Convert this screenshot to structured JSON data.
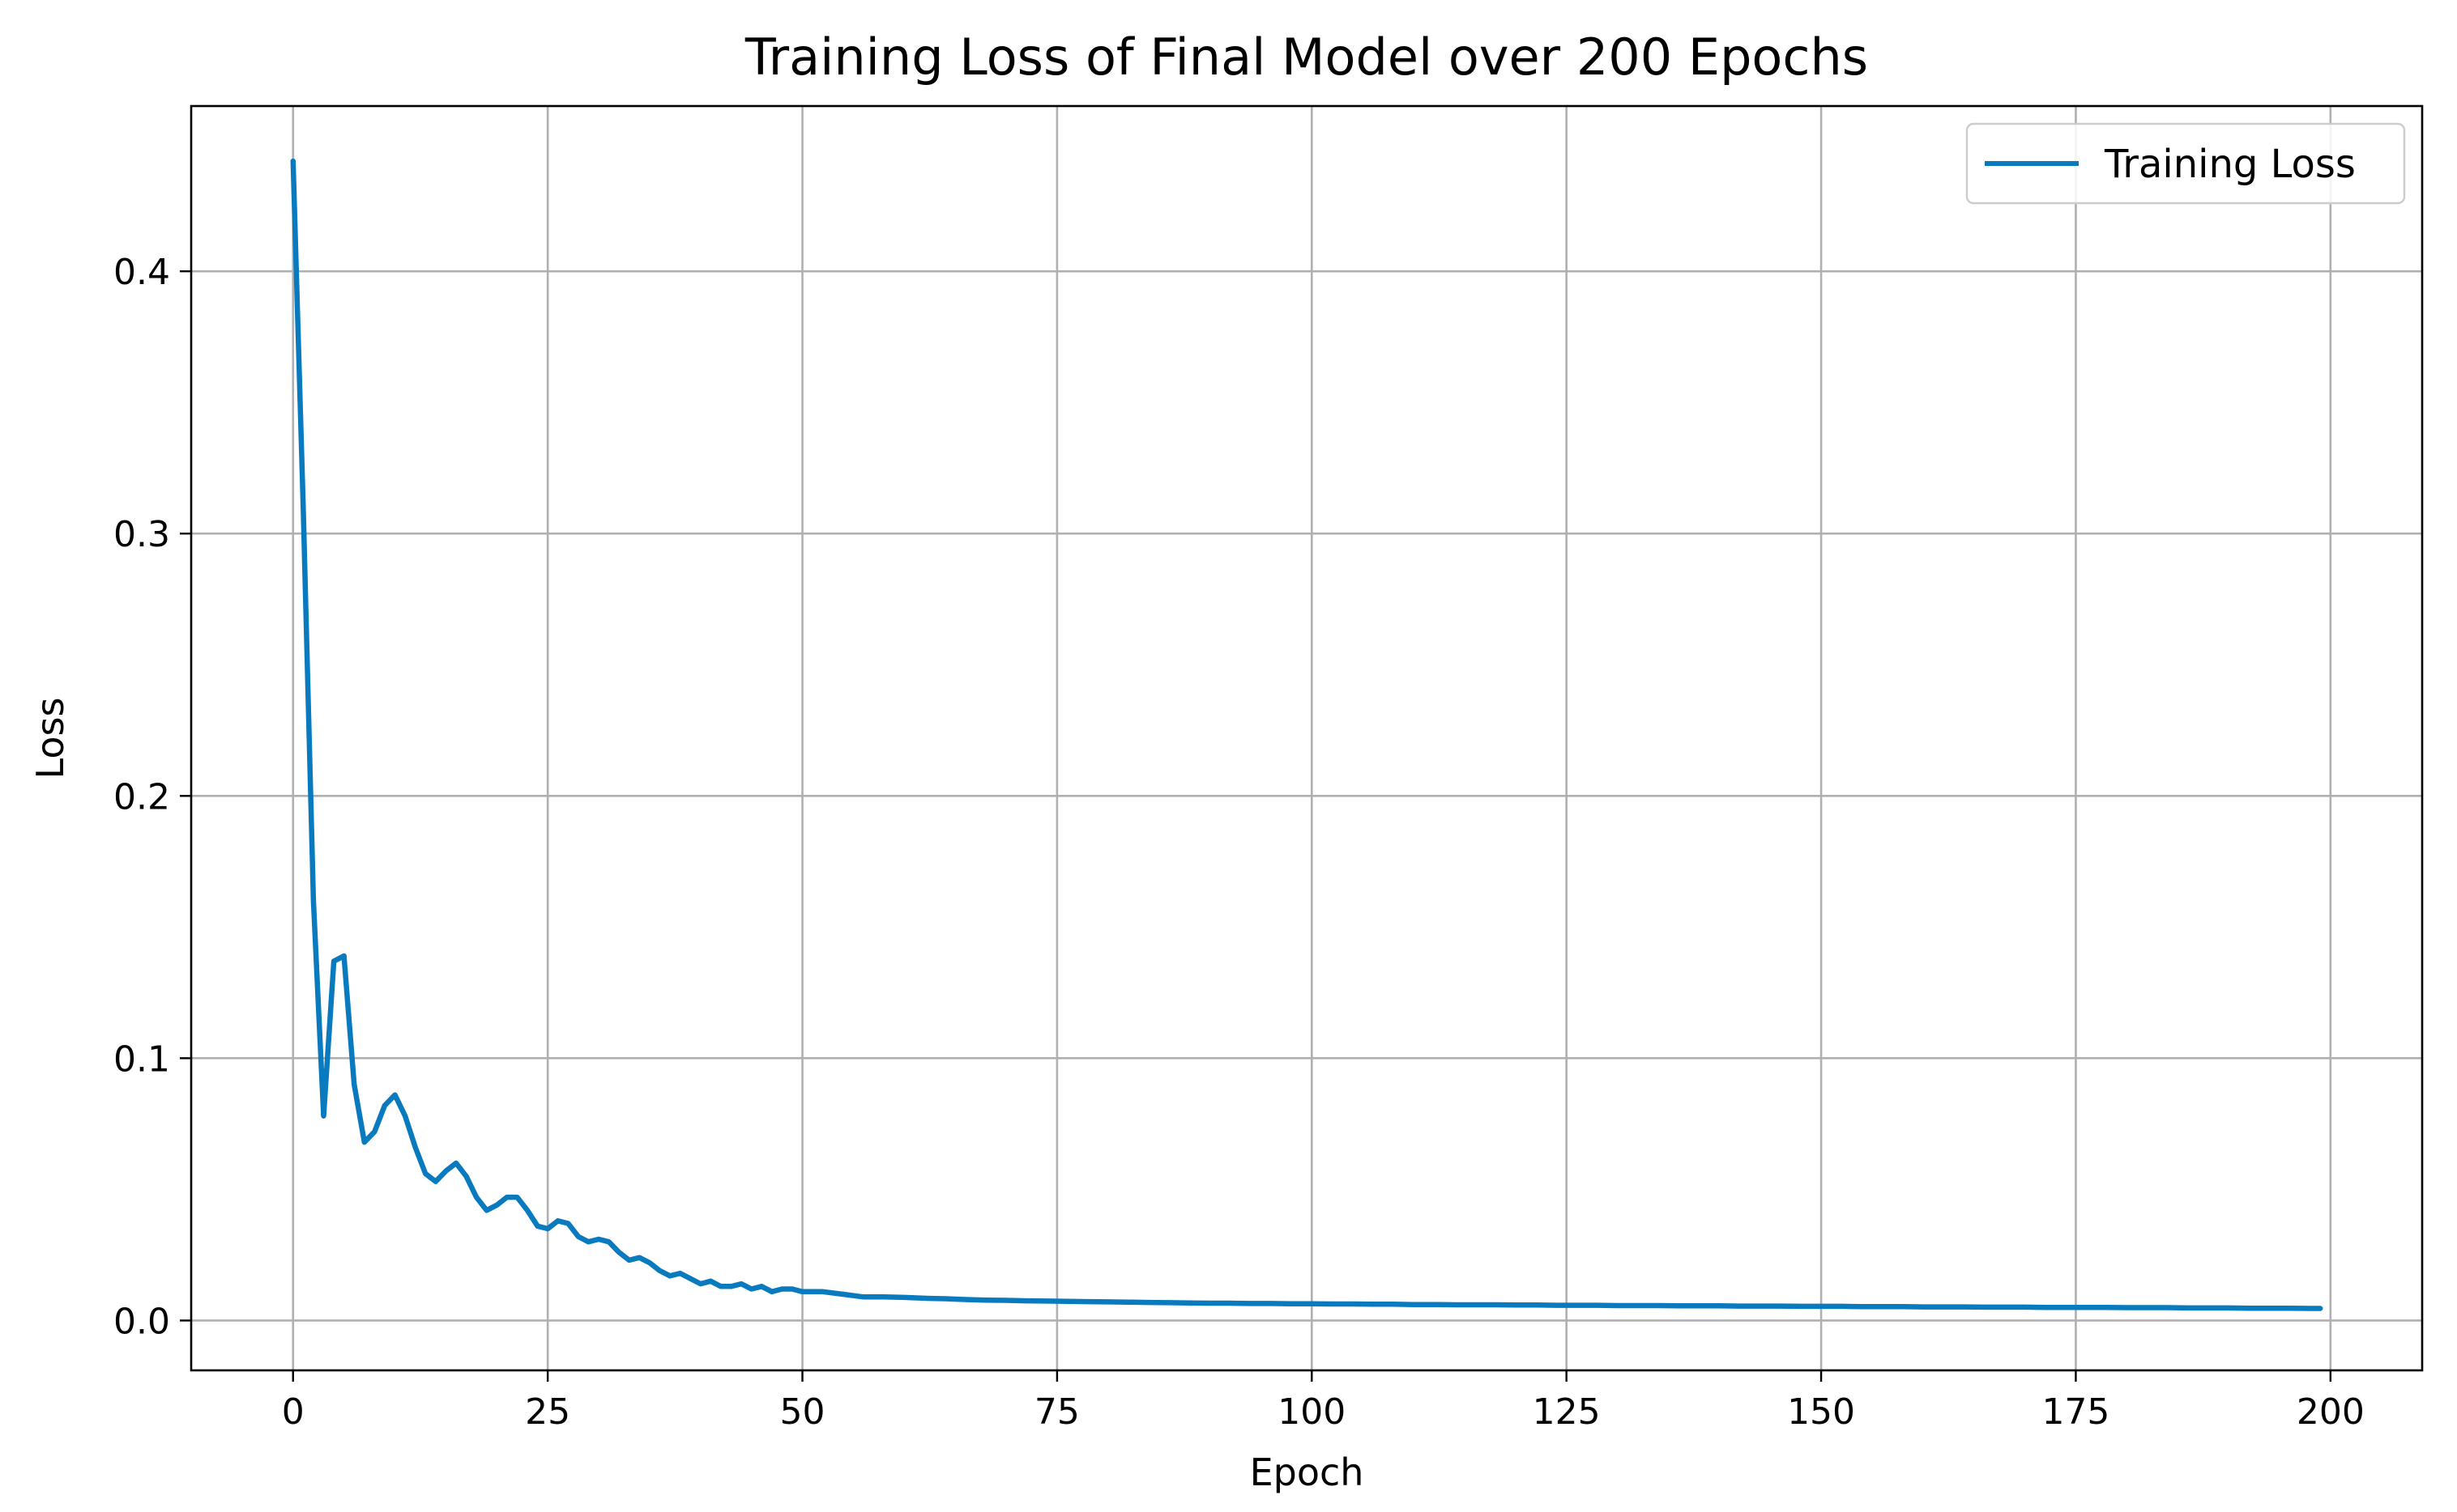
{
  "chart_data": {
    "type": "line",
    "title": "Training Loss of Final Model over 200 Epochs",
    "xlabel": "Epoch",
    "ylabel": "Loss",
    "xlim": [
      -10,
      209
    ],
    "ylim": [
      -0.019,
      0.463
    ],
    "xticks": [
      0,
      25,
      50,
      75,
      100,
      125,
      150,
      175,
      200
    ],
    "xtick_labels": [
      "0",
      "25",
      "50",
      "75",
      "100",
      "125",
      "150",
      "175",
      "200"
    ],
    "yticks": [
      0.0,
      0.1,
      0.2,
      0.3,
      0.4
    ],
    "ytick_labels": [
      "0.0",
      "0.1",
      "0.2",
      "0.3",
      "0.4"
    ],
    "grid": true,
    "legend": {
      "position": "top-right"
    },
    "series": [
      {
        "name": "Training Loss",
        "color": "#0a7abf",
        "x": [
          0,
          1,
          2,
          3,
          4,
          5,
          6,
          7,
          8,
          9,
          10,
          11,
          12,
          13,
          14,
          15,
          16,
          17,
          18,
          19,
          20,
          21,
          22,
          23,
          24,
          25,
          26,
          27,
          28,
          29,
          30,
          31,
          32,
          33,
          34,
          35,
          36,
          37,
          38,
          39,
          40,
          41,
          42,
          43,
          44,
          45,
          46,
          47,
          48,
          49,
          50,
          52,
          54,
          56,
          58,
          60,
          62,
          64,
          66,
          68,
          70,
          72,
          74,
          76,
          78,
          80,
          82,
          84,
          86,
          88,
          90,
          92,
          94,
          96,
          98,
          100,
          102,
          104,
          106,
          108,
          110,
          112,
          114,
          116,
          118,
          120,
          122,
          124,
          126,
          128,
          130,
          132,
          134,
          136,
          138,
          140,
          142,
          144,
          146,
          148,
          150,
          152,
          154,
          156,
          158,
          160,
          162,
          164,
          166,
          168,
          170,
          172,
          174,
          176,
          178,
          180,
          182,
          184,
          186,
          188,
          190,
          192,
          194,
          196,
          198,
          199
        ],
        "y": [
          0.442,
          0.31,
          0.16,
          0.078,
          0.137,
          0.139,
          0.09,
          0.068,
          0.072,
          0.082,
          0.086,
          0.078,
          0.066,
          0.056,
          0.053,
          0.057,
          0.06,
          0.055,
          0.047,
          0.042,
          0.044,
          0.047,
          0.047,
          0.042,
          0.036,
          0.035,
          0.038,
          0.037,
          0.032,
          0.03,
          0.031,
          0.03,
          0.026,
          0.023,
          0.024,
          0.022,
          0.019,
          0.017,
          0.018,
          0.016,
          0.014,
          0.015,
          0.013,
          0.013,
          0.014,
          0.012,
          0.013,
          0.011,
          0.012,
          0.012,
          0.011,
          0.011,
          0.01,
          0.009,
          0.009,
          0.0088,
          0.0085,
          0.0083,
          0.008,
          0.0078,
          0.0077,
          0.0075,
          0.0074,
          0.0073,
          0.0072,
          0.0071,
          0.007,
          0.0069,
          0.0068,
          0.0067,
          0.0066,
          0.0066,
          0.0065,
          0.0065,
          0.0064,
          0.0064,
          0.0063,
          0.0063,
          0.0062,
          0.0062,
          0.0061,
          0.0061,
          0.006,
          0.006,
          0.006,
          0.0059,
          0.0059,
          0.0058,
          0.0058,
          0.0058,
          0.0057,
          0.0057,
          0.0057,
          0.0056,
          0.0056,
          0.0056,
          0.0055,
          0.0055,
          0.0055,
          0.0054,
          0.0054,
          0.0054,
          0.0053,
          0.0053,
          0.0053,
          0.0052,
          0.0052,
          0.0052,
          0.0051,
          0.0051,
          0.0051,
          0.005,
          0.005,
          0.005,
          0.005,
          0.0049,
          0.0049,
          0.0049,
          0.0048,
          0.0048,
          0.0048,
          0.0047,
          0.0047,
          0.0047,
          0.0046,
          0.0046
        ]
      }
    ]
  }
}
